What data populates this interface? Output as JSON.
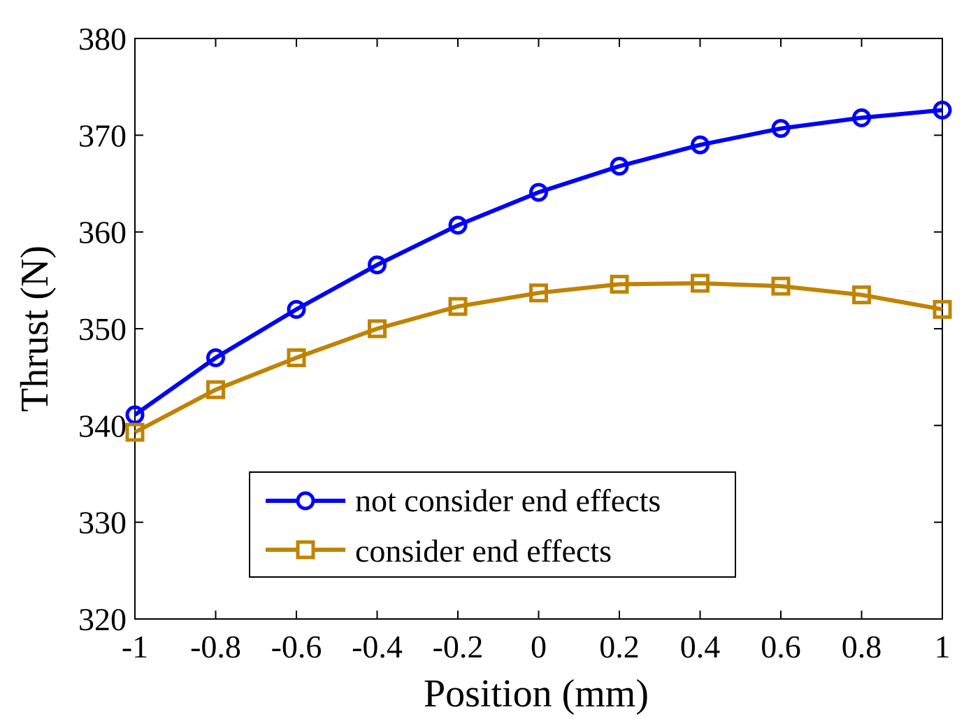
{
  "chart_data": {
    "type": "line",
    "title": "",
    "xlabel": "Position (mm)",
    "ylabel": "Thrust (N)",
    "xlim": [
      -1,
      1
    ],
    "ylim": [
      320,
      380
    ],
    "xticks": [
      -1,
      -0.8,
      -0.6,
      -0.4,
      -0.2,
      0,
      0.2,
      0.4,
      0.6,
      0.8,
      1
    ],
    "xtick_labels": [
      "-1",
      "-0.8",
      "-0.6",
      "-0.4",
      "-0.2",
      "0",
      "0.2",
      "0.4",
      "0.6",
      "0.8",
      "1"
    ],
    "yticks": [
      320,
      330,
      340,
      350,
      360,
      370,
      380
    ],
    "ytick_labels": [
      "320",
      "330",
      "340",
      "350",
      "360",
      "370",
      "380"
    ],
    "grid": false,
    "legend_position": "bottom-center",
    "x": [
      -1,
      -0.8,
      -0.6,
      -0.4,
      -0.2,
      0,
      0.2,
      0.4,
      0.6,
      0.8,
      1
    ],
    "series": [
      {
        "name": "not consider end effects",
        "color": "#0000ff",
        "marker": "circle",
        "values": [
          341.1,
          347.0,
          352.0,
          356.6,
          360.7,
          364.1,
          366.8,
          369.0,
          370.7,
          371.8,
          372.6
        ]
      },
      {
        "name": "consider end effects",
        "color": "#c08300",
        "marker": "square",
        "values": [
          339.3,
          343.7,
          347.0,
          350.0,
          352.3,
          353.7,
          354.6,
          354.7,
          354.4,
          353.5,
          352.0
        ]
      }
    ]
  }
}
